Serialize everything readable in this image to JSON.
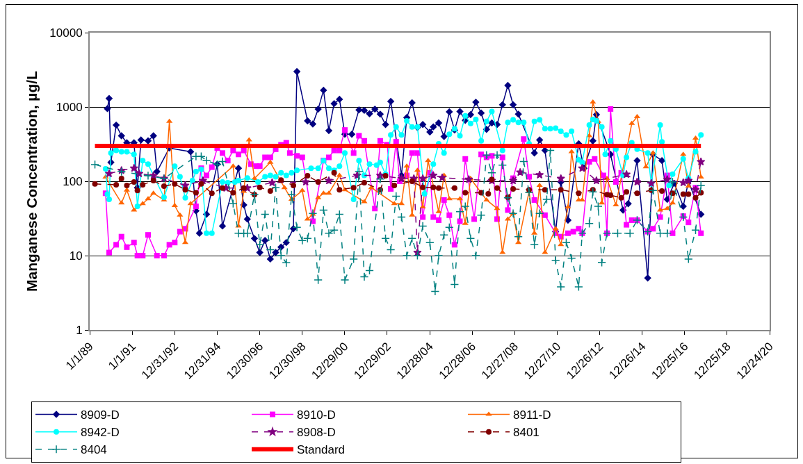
{
  "chart_data": {
    "type": "line",
    "ylabel": "Manganese Concentration, µg/L",
    "log": "y",
    "grid": "y",
    "legend": "bottom",
    "xlim": [
      "1989-01-01",
      "2020-12-24"
    ],
    "xticks": [
      {
        "value": "1989-01-01",
        "label": "1/1/89"
      },
      {
        "value": "1991-01-01",
        "label": "1/1/91"
      },
      {
        "value": "1992-12-31",
        "label": "12/31/92"
      },
      {
        "value": "1994-12-31",
        "label": "12/31/94"
      },
      {
        "value": "1996-12-30",
        "label": "12/30/96"
      },
      {
        "value": "1998-12-30",
        "label": "12/30/98"
      },
      {
        "value": "2000-12-29",
        "label": "12/29/00"
      },
      {
        "value": "2002-12-29",
        "label": "12/29/02"
      },
      {
        "value": "2004-12-28",
        "label": "12/28/04"
      },
      {
        "value": "2006-12-28",
        "label": "12/28/06"
      },
      {
        "value": "2008-12-27",
        "label": "12/27/08"
      },
      {
        "value": "2010-12-27",
        "label": "12/27/10"
      },
      {
        "value": "2012-12-26",
        "label": "12/26/12"
      },
      {
        "value": "2014-12-26",
        "label": "12/26/14"
      },
      {
        "value": "2016-12-25",
        "label": "12/25/16"
      },
      {
        "value": "2018-12-25",
        "label": "12/25/18"
      },
      {
        "value": "2020-12-24",
        "label": "12/24/20"
      }
    ],
    "ylim": [
      1,
      10000
    ],
    "yticks": [
      1,
      10,
      100,
      1000,
      10000
    ],
    "series": [
      {
        "name": "8909-D",
        "color": "#000080",
        "marker": "diamond",
        "line_style": "solid",
        "x": [
          "1989-11",
          "1989-12",
          "1990-01",
          "1990-04",
          "1990-07",
          "1990-10",
          "1991-02",
          "1991-04",
          "1991-06",
          "1991-10",
          "1992-01",
          "1992-03",
          "1992-10",
          "1993-10",
          "1994-01",
          "1994-03",
          "1994-07",
          "1995-01",
          "1995-04",
          "1996-01",
          "1996-04",
          "1996-06",
          "1996-10",
          "1997-01",
          "1997-04",
          "1997-07",
          "1997-10",
          "1998-01",
          "1998-04",
          "1998-08",
          "1998-10",
          "1999-04",
          "1999-07",
          "1999-10",
          "2000-01",
          "2000-04",
          "2000-07",
          "2000-10",
          "2001-01",
          "2001-05",
          "2001-09",
          "2001-12",
          "2002-03",
          "2002-06",
          "2002-09",
          "2002-12",
          "2003-03",
          "2003-09",
          "2003-12",
          "2004-03",
          "2004-06",
          "2004-09",
          "2005-01",
          "2005-03",
          "2005-06",
          "2005-09",
          "2005-12",
          "2006-03",
          "2006-06",
          "2006-09",
          "2006-12",
          "2007-03",
          "2007-06",
          "2007-09",
          "2007-12",
          "2008-03",
          "2008-06",
          "2008-09",
          "2008-12",
          "2009-03",
          "2009-12",
          "2010-03",
          "2010-06",
          "2010-12",
          "2011-03",
          "2011-07",
          "2012-01",
          "2012-04",
          "2012-09",
          "2012-11",
          "2013-07",
          "2014-02",
          "2014-05",
          "2014-10",
          "2015-04",
          "2015-07",
          "2015-12",
          "2016-03",
          "2016-07",
          "2016-12",
          "2017-03",
          "2017-10"
        ],
        "values": [
          950,
          1300,
          180,
          570,
          410,
          330,
          330,
          82,
          360,
          350,
          410,
          135,
          280,
          250,
          40,
          20,
          36,
          170,
          25,
          150,
          48,
          31,
          17,
          11,
          16,
          9,
          11,
          13,
          15,
          23,
          3000,
          650,
          590,
          935,
          1680,
          480,
          1110,
          1270,
          430,
          430,
          915,
          900,
          810,
          935,
          800,
          580,
          1190,
          120,
          720,
          1140,
          530,
          580,
          460,
          540,
          610,
          400,
          860,
          490,
          870,
          660,
          790,
          1160,
          830,
          500,
          610,
          580,
          1070,
          1950,
          1070,
          800,
          240,
          360,
          260,
          21,
          98,
          30,
          320,
          150,
          350,
          790,
          230,
          41,
          50,
          190,
          5,
          230,
          190,
          57,
          94,
          46,
          100,
          36
        ]
      },
      {
        "name": "8910-D",
        "color": "#ff00ff",
        "marker": "square",
        "line_style": "solid",
        "x": [
          "1989-10",
          "1989-12",
          "1990-04",
          "1990-07",
          "1990-10",
          "1991-02",
          "1991-04",
          "1991-07",
          "1991-10",
          "1992-03",
          "1992-07",
          "1992-10",
          "1993-01",
          "1993-04",
          "1993-07",
          "1994-01",
          "1994-04",
          "1994-07",
          "1994-10",
          "1995-01",
          "1995-04",
          "1995-07",
          "1995-10",
          "1996-01",
          "1996-04",
          "1996-08",
          "1996-11",
          "1997-01",
          "1997-04",
          "1997-07",
          "1997-10",
          "1998-01",
          "1998-04",
          "1998-06",
          "1998-10",
          "1999-01",
          "1999-07",
          "2000-01",
          "2000-04",
          "2000-07",
          "2000-10",
          "2001-01",
          "2001-06",
          "2001-09",
          "2001-12",
          "2002-06",
          "2002-09",
          "2003-01",
          "2003-03",
          "2003-06",
          "2003-08",
          "2003-12",
          "2004-03",
          "2004-06",
          "2004-09",
          "2005-01",
          "2005-03",
          "2005-06",
          "2005-09",
          "2005-12",
          "2006-03",
          "2006-06",
          "2006-09",
          "2007-02",
          "2007-06",
          "2007-09",
          "2007-12",
          "2008-03",
          "2008-06",
          "2008-09",
          "2008-12",
          "2009-06",
          "2009-09",
          "2009-12",
          "2010-06",
          "2010-12",
          "2011-03",
          "2011-07",
          "2011-10",
          "2012-01",
          "2012-03",
          "2012-07",
          "2012-10",
          "2013-03",
          "2013-05",
          "2013-07",
          "2013-10",
          "2014-01",
          "2014-04",
          "2014-07",
          "2014-10",
          "2015-04",
          "2015-07",
          "2015-11",
          "2016-03",
          "2016-06",
          "2016-12",
          "2017-03",
          "2017-07",
          "2017-10"
        ],
        "values": [
          69,
          11,
          14,
          18,
          13,
          15,
          10,
          10,
          19,
          10,
          10,
          14,
          15,
          21,
          23,
          46,
          150,
          120,
          155,
          280,
          240,
          190,
          260,
          230,
          260,
          170,
          160,
          160,
          210,
          210,
          270,
          310,
          330,
          240,
          220,
          210,
          29,
          190,
          210,
          260,
          260,
          490,
          240,
          410,
          350,
          43,
          350,
          310,
          79,
          340,
          100,
          120,
          240,
          240,
          33,
          130,
          33,
          30,
          56,
          35,
          14,
          29,
          200,
          31,
          230,
          210,
          220,
          31,
          210,
          41,
          110,
          370,
          115,
          56,
          35,
          20,
          18,
          20,
          21,
          23,
          20,
          183,
          200,
          120,
          20,
          940,
          98,
          130,
          26,
          30,
          30,
          21,
          23,
          33,
          120,
          20,
          34,
          28,
          82,
          20
        ]
      },
      {
        "name": "8911-D",
        "color": "#ff6600",
        "marker": "triangle",
        "line_style": "solid",
        "x": [
          "1989-10",
          "1990-07",
          "1990-10",
          "1991-02",
          "1991-07",
          "1991-10",
          "1992-01",
          "1992-07",
          "1992-10",
          "1993-01",
          "1993-04",
          "1993-07",
          "1993-10",
          "1995-10",
          "1996-01",
          "1996-04",
          "1996-07",
          "1996-10",
          "1997-07",
          "1998-03",
          "1998-07",
          "1999-01",
          "1999-04",
          "1999-07",
          "1999-10",
          "2000-01",
          "2000-04",
          "2000-10",
          "2001-01",
          "2001-12",
          "2002-04",
          "2003-05",
          "2003-09",
          "2003-12",
          "2004-03",
          "2004-06",
          "2004-09",
          "2004-12",
          "2005-06",
          "2005-09",
          "2005-12",
          "2006-06",
          "2006-09",
          "2006-12",
          "2007-09",
          "2008-03",
          "2008-06",
          "2008-09",
          "2008-12",
          "2009-03",
          "2009-09",
          "2009-12",
          "2010-03",
          "2010-06",
          "2010-12",
          "2011-03",
          "2011-07",
          "2011-09",
          "2012-01",
          "2012-03",
          "2012-07",
          "2012-09",
          "2012-12",
          "2013-02",
          "2013-05",
          "2013-10",
          "2014-07",
          "2014-10",
          "2015-03",
          "2015-07",
          "2015-11",
          "2016-03",
          "2016-06",
          "2016-12",
          "2017-03",
          "2017-07",
          "2017-10"
        ],
        "values": [
          114,
          51,
          76,
          41,
          50,
          58,
          69,
          56,
          640,
          47,
          35,
          15,
          50,
          160,
          25,
          73,
          360,
          109,
          180,
          82,
          57,
          75,
          31,
          36,
          60,
          69,
          69,
          120,
          77,
          53,
          82,
          50,
          50,
          160,
          35,
          140,
          45,
          190,
          39,
          120,
          58,
          58,
          27,
          109,
          56,
          43,
          11,
          31,
          37,
          15,
          73,
          20,
          88,
          11,
          23,
          14,
          45,
          250,
          56,
          56,
          410,
          1160,
          640,
          51,
          109,
          48,
          600,
          740,
          156,
          240,
          41,
          43,
          51,
          230,
          86,
          380,
          114
        ]
      },
      {
        "name": "8942-D",
        "color": "#00ffff",
        "marker": "circle",
        "line_style": "solid",
        "x": [
          "1989-10",
          "1989-11",
          "1989-12",
          "1990-01",
          "1990-04",
          "1990-07",
          "1990-10",
          "1991-02",
          "1991-04",
          "1991-07",
          "1991-10",
          "1992-07",
          "1993-01",
          "1993-04",
          "1993-07",
          "1993-11",
          "1994-01",
          "1994-04",
          "1994-07",
          "1994-10",
          "1995-04",
          "1995-07",
          "1995-11",
          "1996-01",
          "1996-06",
          "1996-12",
          "1997-04",
          "1997-07",
          "1997-10",
          "1998-01",
          "1998-04",
          "1998-07",
          "1998-10",
          "1999-06",
          "1999-10",
          "2000-01",
          "2000-04",
          "2000-07",
          "2000-10",
          "2001-01",
          "2001-06",
          "2001-09",
          "2001-12",
          "2002-03",
          "2002-07",
          "2002-09",
          "2002-12",
          "2003-03",
          "2003-06",
          "2003-09",
          "2003-12",
          "2004-03",
          "2004-06",
          "2004-10",
          "2005-03",
          "2005-06",
          "2005-09",
          "2005-12",
          "2006-03",
          "2006-06",
          "2006-09",
          "2006-12",
          "2007-03",
          "2007-06",
          "2007-09",
          "2007-12",
          "2008-06",
          "2008-09",
          "2008-12",
          "2009-03",
          "2009-06",
          "2009-09",
          "2009-12",
          "2010-03",
          "2010-06",
          "2010-09",
          "2010-12",
          "2011-03",
          "2011-06",
          "2011-09",
          "2012-01",
          "2012-03",
          "2012-07",
          "2012-09",
          "2012-11",
          "2013-02",
          "2013-04",
          "2013-07",
          "2013-10",
          "2014-02",
          "2014-04",
          "2014-07",
          "2014-10",
          "2015-04",
          "2015-06",
          "2015-11",
          "2015-12",
          "2016-04",
          "2016-06",
          "2016-12",
          "2017-03",
          "2017-07",
          "2017-10"
        ],
        "values": [
          147,
          67,
          57,
          240,
          260,
          250,
          250,
          230,
          46,
          190,
          170,
          61,
          160,
          115,
          60,
          102,
          135,
          145,
          20,
          20,
          98,
          96,
          98,
          102,
          111,
          98,
          115,
          120,
          115,
          130,
          120,
          130,
          140,
          150,
          150,
          190,
          150,
          140,
          160,
          240,
          57,
          190,
          120,
          170,
          165,
          180,
          125,
          420,
          540,
          420,
          650,
          540,
          540,
          68,
          170,
          320,
          240,
          430,
          510,
          410,
          760,
          600,
          680,
          350,
          640,
          870,
          260,
          620,
          670,
          620,
          620,
          320,
          640,
          670,
          510,
          510,
          520,
          470,
          420,
          470,
          195,
          180,
          570,
          680,
          650,
          540,
          230,
          350,
          270,
          120,
          210,
          330,
          270,
          240,
          92,
          570,
          340,
          88,
          125,
          200,
          110,
          250,
          420
        ]
      },
      {
        "name": "8908-D",
        "color": "#800080",
        "marker": "star",
        "line_style": "dashed",
        "x": [
          "1989-12",
          "1990-07",
          "1991-02",
          "1991-05",
          "1992-01",
          "1992-07",
          "1993-07",
          "1994-05",
          "1995-06",
          "1996-06",
          "1997-08",
          "1999-03",
          "2000-04",
          "2001-08",
          "2002-09",
          "2003-09",
          "2004-04",
          "2004-06",
          "2004-09",
          "2005-03",
          "2005-08",
          "2006-11",
          "2007-12",
          "2008-12",
          "2009-04",
          "2010-03",
          "2011-03",
          "2012-03",
          "2012-11",
          "2014-04",
          "2014-10",
          "2015-06",
          "2016-03",
          "2016-12",
          "2017-03",
          "2017-07",
          "2017-10"
        ],
        "values": [
          127,
          140,
          150,
          127,
          119,
          109,
          88,
          102,
          81,
          81,
          96,
          98,
          102,
          120,
          120,
          109,
          109,
          11,
          109,
          120,
          112,
          106,
          102,
          102,
          132,
          122,
          109,
          150,
          102,
          124,
          98,
          94,
          106,
          96,
          102,
          77,
          183
        ]
      },
      {
        "name": "8401",
        "color": "#800000",
        "marker": "circle",
        "line_style": "dashed",
        "x": [
          "1989-04",
          "1990-04",
          "1990-07",
          "1990-10",
          "1991-02",
          "1991-04",
          "1991-07",
          "1992-01",
          "1992-07",
          "1993-01",
          "1993-07",
          "1994-01",
          "1994-04",
          "1994-10",
          "1995-04",
          "1995-10",
          "1996-04",
          "1996-10",
          "1997-01",
          "1997-07",
          "1998-01",
          "1998-08",
          "1999-04",
          "1999-10",
          "2000-07",
          "2000-10",
          "2001-06",
          "2001-12",
          "2002-09",
          "2002-12",
          "2003-05",
          "2004-03",
          "2004-09",
          "2005-03",
          "2005-06",
          "2006-03",
          "2006-09",
          "2007-06",
          "2007-10",
          "2007-12",
          "2008-03",
          "2008-09",
          "2008-12",
          "2009-09",
          "2010-06",
          "2011-03",
          "2012-01",
          "2012-09",
          "2013-05",
          "2013-07",
          "2014-01",
          "2014-04",
          "2014-10",
          "2015-06",
          "2015-12",
          "2016-06",
          "2016-12",
          "2017-03",
          "2017-07",
          "2017-10"
        ],
        "values": [
          92,
          90,
          109,
          88,
          98,
          75,
          90,
          102,
          86,
          92,
          77,
          70,
          92,
          69,
          81,
          70,
          81,
          66,
          83,
          74,
          104,
          88,
          119,
          98,
          130,
          77,
          82,
          96,
          77,
          119,
          88,
          100,
          83,
          83,
          81,
          81,
          70,
          70,
          68,
          106,
          81,
          61,
          79,
          77,
          77,
          77,
          69,
          77,
          66,
          65,
          60,
          72,
          69,
          76,
          74,
          69,
          67,
          67,
          60,
          70
        ]
      },
      {
        "name": "8404",
        "color": "#008080",
        "marker": "cross",
        "line_style": "dashed",
        "x": [
          "1989-04",
          "1990-07",
          "1991-10",
          "1992-07",
          "1994-01",
          "1994-04",
          "1994-07",
          "1995-01",
          "1995-04",
          "1995-10",
          "1996-01",
          "1996-04",
          "1996-06",
          "1996-10",
          "1997-01",
          "1997-04",
          "1997-07",
          "1997-10",
          "1998-01",
          "1998-04",
          "1998-07",
          "1998-10",
          "1999-01",
          "1999-04",
          "1999-07",
          "1999-10",
          "2000-01",
          "2000-04",
          "2000-07",
          "2000-10",
          "2001-01",
          "2001-06",
          "2001-09",
          "2001-12",
          "2002-03",
          "2002-09",
          "2002-12",
          "2003-03",
          "2003-06",
          "2003-09",
          "2003-12",
          "2004-03",
          "2004-06",
          "2004-09",
          "2005-01",
          "2005-04",
          "2005-06",
          "2005-09",
          "2005-12",
          "2006-03",
          "2006-06",
          "2006-09",
          "2006-12",
          "2007-03",
          "2007-06",
          "2007-09",
          "2007-12",
          "2008-03",
          "2008-06",
          "2008-09",
          "2008-12",
          "2009-03",
          "2009-06",
          "2009-09",
          "2009-12",
          "2010-03",
          "2010-07",
          "2010-09",
          "2010-12",
          "2011-03",
          "2011-06",
          "2011-09",
          "2012-01",
          "2012-03",
          "2012-07",
          "2012-09",
          "2012-12",
          "2013-02",
          "2013-05",
          "2013-11",
          "2014-06",
          "2014-10",
          "2015-04",
          "2015-07",
          "2015-11",
          "2016-03",
          "2016-06",
          "2016-12",
          "2017-03",
          "2017-07",
          "2017-10"
        ],
        "values": [
          168,
          135,
          119,
          109,
          216,
          216,
          190,
          168,
          185,
          50,
          20,
          20,
          20,
          66,
          14,
          36,
          12,
          82,
          10,
          8,
          66,
          24,
          16,
          17,
          37,
          4.7,
          41,
          20,
          22,
          36,
          4.7,
          9,
          135,
          5.2,
          6.3,
          107,
          17,
          12,
          63,
          33,
          10,
          17,
          10,
          25,
          15,
          3.3,
          10,
          19,
          24,
          4.1,
          39,
          46,
          17,
          10,
          35,
          225,
          130,
          225,
          165,
          60,
          37,
          18,
          185,
          71,
          14,
          37,
          57,
          260,
          8.6,
          3.8,
          15,
          9.2,
          3.8,
          20,
          27,
          72,
          46,
          8.1,
          20,
          20,
          20,
          30,
          21,
          75,
          20,
          20,
          98,
          33,
          9,
          22,
          88
        ]
      },
      {
        "name": "Standard",
        "color": "#ff0000",
        "marker": "none",
        "line_style": "solid",
        "x": [
          "1989-04",
          "2017-10"
        ],
        "values": [
          300,
          300
        ]
      }
    ]
  }
}
